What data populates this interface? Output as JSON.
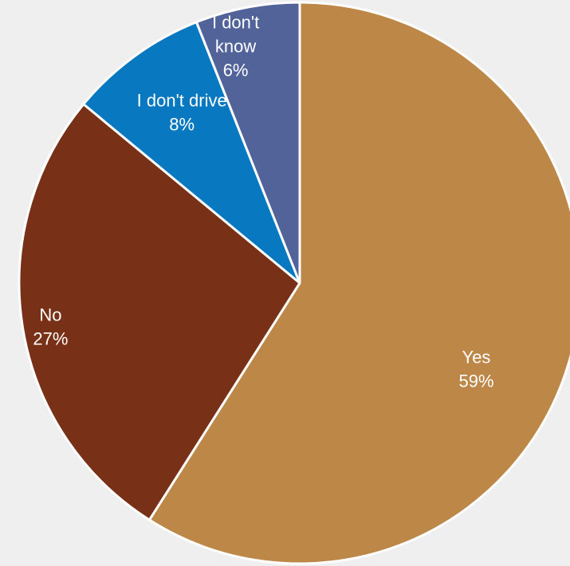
{
  "chart_data": {
    "type": "pie",
    "title": "",
    "start_angle_deg": 0,
    "direction": "clockwise",
    "slices": [
      {
        "name": "Yes",
        "value": 59,
        "value_label": "59%",
        "label_lines": [
          "Yes"
        ],
        "color": "#bd8748"
      },
      {
        "name": "No",
        "value": 27,
        "value_label": "27%",
        "label_lines": [
          "No"
        ],
        "color": "#783117"
      },
      {
        "name": "I don't drive",
        "value": 8,
        "value_label": "8%",
        "label_lines": [
          "I don't drive"
        ],
        "color": "#0878c0"
      },
      {
        "name": "I don't know",
        "value": 6,
        "value_label": "6%",
        "label_lines": [
          "I don't",
          "know"
        ],
        "color": "#52639a"
      }
    ]
  }
}
